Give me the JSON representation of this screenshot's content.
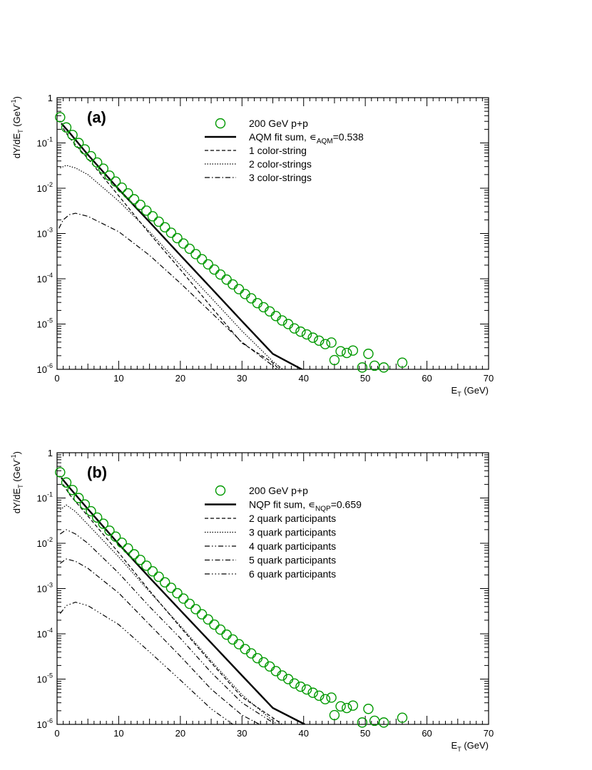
{
  "chart_data": [
    {
      "type": "line",
      "panel_label": "(a)",
      "xlabel": "E_T (GeV)",
      "ylabel": "dY/dE_T (GeV^-1)",
      "xlim": [
        0,
        70
      ],
      "ylim": [
        1e-06,
        1
      ],
      "yscale": "log",
      "x_ticks": [
        0,
        10,
        20,
        30,
        40,
        50,
        60,
        70
      ],
      "y_ticks": [
        1e-06,
        1e-05,
        0.0001,
        0.001,
        0.01,
        0.1,
        1
      ],
      "grid": false,
      "legend_position": "top-right",
      "legend": [
        {
          "label": "200 GeV p+p",
          "style": "marker",
          "color": "#009900"
        },
        {
          "label": "AQM fit sum, ε_AQM=0.538",
          "style": "solid-thick",
          "color": "#000000"
        },
        {
          "label": "1 color-string",
          "style": "dashed",
          "color": "#000000"
        },
        {
          "label": "2 color-strings",
          "style": "dotted",
          "color": "#000000"
        },
        {
          "label": "3 color-strings",
          "style": "dashdot",
          "color": "#000000"
        }
      ],
      "data_points": {
        "name": "200 GeV p+p",
        "color": "#009900",
        "x": [
          0.5,
          1.5,
          2.5,
          3.5,
          4.5,
          5.5,
          6.5,
          7.5,
          8.5,
          9.5,
          10.5,
          11.5,
          12.5,
          13.5,
          14.5,
          15.5,
          16.5,
          17.5,
          18.5,
          19.5,
          20.5,
          21.5,
          22.5,
          23.5,
          24.5,
          25.5,
          26.5,
          27.5,
          28.5,
          29.5,
          30.5,
          31.5,
          32.5,
          33.5,
          34.5,
          35.5,
          36.5,
          37.5,
          38.5,
          39.5,
          40.5,
          41.5,
          42.5,
          43.5,
          44.5,
          45,
          46,
          47,
          48,
          49.5,
          50.5,
          51.5,
          53,
          56
        ],
        "y": [
          0.37,
          0.22,
          0.15,
          0.1,
          0.072,
          0.051,
          0.037,
          0.027,
          0.019,
          0.014,
          0.0103,
          0.0077,
          0.0057,
          0.0043,
          0.0032,
          0.0024,
          0.00182,
          0.00137,
          0.00104,
          0.00079,
          0.0006,
          0.00046,
          0.00035,
          0.00027,
          0.000208,
          0.00016,
          0.000124,
          9.6e-05,
          7.5e-05,
          5.9e-05,
          4.6e-05,
          3.7e-05,
          2.9e-05,
          2.35e-05,
          1.9e-05,
          1.5e-05,
          1.2e-05,
          1e-05,
          8e-06,
          6.8e-06,
          5.9e-06,
          5e-06,
          4.3e-06,
          3.6e-06,
          3.9e-06,
          1.6e-06,
          2.5e-06,
          2.3e-06,
          2.6e-06,
          1.1e-06,
          2.2e-06,
          1.2e-06,
          1.1e-06,
          1.4e-06
        ]
      },
      "series": [
        {
          "name": "AQM fit sum",
          "style": "solid-thick",
          "x": [
            0.7,
            2,
            5,
            10,
            15,
            20,
            25,
            30,
            35,
            40
          ],
          "y": [
            0.27,
            0.17,
            0.055,
            0.0095,
            0.0018,
            0.00033,
            6.2e-05,
            1.15e-05,
            2.2e-06,
            9.5e-07
          ]
        },
        {
          "name": "1 color-string",
          "style": "dashed",
          "x": [
            1,
            2,
            5,
            10,
            15,
            20,
            25,
            30,
            35,
            36
          ],
          "y": [
            0.21,
            0.13,
            0.045,
            0.0068,
            0.001,
            0.00016,
            2.4e-05,
            3.8e-06,
            1.4e-06,
            1e-06
          ]
        },
        {
          "name": "2 color-strings",
          "style": "dotted",
          "x": [
            0.5,
            1.5,
            3,
            5,
            10,
            15,
            20,
            25,
            30,
            35,
            37.5
          ],
          "y": [
            0.028,
            0.032,
            0.028,
            0.02,
            0.0052,
            0.0011,
            0.0002,
            3.8e-05,
            7e-06,
            1.5e-06,
            8e-07
          ]
        },
        {
          "name": "3 color-strings",
          "style": "dashdot",
          "x": [
            0.3,
            1,
            2,
            3,
            5,
            10,
            15,
            20,
            25,
            30,
            35,
            36
          ],
          "y": [
            0.0013,
            0.002,
            0.0026,
            0.0028,
            0.0024,
            0.0011,
            0.00033,
            8e-05,
            1.8e-05,
            4e-06,
            1.2e-06,
            9e-07
          ]
        }
      ]
    },
    {
      "type": "line",
      "panel_label": "(b)",
      "xlabel": "E_T (GeV)",
      "ylabel": "dY/dE_T (GeV^-1)",
      "xlim": [
        0,
        70
      ],
      "ylim": [
        1e-06,
        1
      ],
      "yscale": "log",
      "x_ticks": [
        0,
        10,
        20,
        30,
        40,
        50,
        60,
        70
      ],
      "y_ticks": [
        1e-06,
        1e-05,
        0.0001,
        0.001,
        0.01,
        0.1,
        1
      ],
      "grid": false,
      "legend_position": "top-right",
      "legend": [
        {
          "label": "200 GeV p+p",
          "style": "marker",
          "color": "#009900"
        },
        {
          "label": "NQP fit sum, ε_NQP=0.659",
          "style": "solid-thick",
          "color": "#000000"
        },
        {
          "label": "2 quark participants",
          "style": "dashed",
          "color": "#000000"
        },
        {
          "label": "3 quark participants",
          "style": "dotted",
          "color": "#000000"
        },
        {
          "label": "4 quark participants",
          "style": "dashdotdot",
          "color": "#000000"
        },
        {
          "label": "5 quark participants",
          "style": "dashdot",
          "color": "#000000"
        },
        {
          "label": "6 quark participants",
          "style": "dashdotdotdot",
          "color": "#000000"
        }
      ],
      "data_points": {
        "name": "200 GeV p+p",
        "color": "#009900",
        "x": [
          0.5,
          1.5,
          2.5,
          3.5,
          4.5,
          5.5,
          6.5,
          7.5,
          8.5,
          9.5,
          10.5,
          11.5,
          12.5,
          13.5,
          14.5,
          15.5,
          16.5,
          17.5,
          18.5,
          19.5,
          20.5,
          21.5,
          22.5,
          23.5,
          24.5,
          25.5,
          26.5,
          27.5,
          28.5,
          29.5,
          30.5,
          31.5,
          32.5,
          33.5,
          34.5,
          35.5,
          36.5,
          37.5,
          38.5,
          39.5,
          40.5,
          41.5,
          42.5,
          43.5,
          44.5,
          45,
          46,
          47,
          48,
          49.5,
          50.5,
          51.5,
          53,
          56
        ],
        "y": [
          0.37,
          0.22,
          0.15,
          0.1,
          0.072,
          0.051,
          0.037,
          0.027,
          0.019,
          0.014,
          0.0103,
          0.0077,
          0.0057,
          0.0043,
          0.0032,
          0.0024,
          0.00182,
          0.00137,
          0.00104,
          0.00079,
          0.0006,
          0.00046,
          0.00035,
          0.00027,
          0.000208,
          0.00016,
          0.000124,
          9.6e-05,
          7.5e-05,
          5.9e-05,
          4.6e-05,
          3.7e-05,
          2.9e-05,
          2.35e-05,
          1.9e-05,
          1.5e-05,
          1.2e-05,
          1e-05,
          8e-06,
          6.8e-06,
          5.9e-06,
          5e-06,
          4.3e-06,
          3.6e-06,
          3.9e-06,
          1.6e-06,
          2.5e-06,
          2.3e-06,
          2.6e-06,
          1.1e-06,
          2.2e-06,
          1.2e-06,
          1.1e-06,
          1.4e-06
        ]
      },
      "series": [
        {
          "name": "NQP fit sum",
          "style": "solid-thick",
          "x": [
            0.7,
            2,
            5,
            10,
            15,
            20,
            25,
            30,
            35,
            40.2
          ],
          "y": [
            0.28,
            0.17,
            0.057,
            0.0096,
            0.00175,
            0.00033,
            6.3e-05,
            1.2e-05,
            2.3e-06,
            1e-06
          ]
        },
        {
          "name": "2 quark participants",
          "style": "dashed",
          "x": [
            1,
            2,
            5,
            10,
            15,
            20,
            25,
            30,
            35,
            36.5
          ],
          "y": [
            0.2,
            0.12,
            0.04,
            0.0062,
            0.0009,
            0.00014,
            2.3e-05,
            4e-06,
            1.4e-06,
            1e-06
          ]
        },
        {
          "name": "3 quark participants",
          "style": "dotted",
          "x": [
            0.5,
            1.5,
            3,
            5,
            10,
            15,
            20,
            25,
            30,
            35,
            36
          ],
          "y": [
            0.055,
            0.07,
            0.05,
            0.026,
            0.005,
            0.00085,
            0.00015,
            2.5e-05,
            4.5e-06,
            1.2e-06,
            9e-07
          ]
        },
        {
          "name": "4 quark participants",
          "style": "dashdotdot",
          "x": [
            0.5,
            1.5,
            3,
            5,
            10,
            15,
            20,
            25,
            30,
            35,
            35.5
          ],
          "y": [
            0.016,
            0.02,
            0.016,
            0.01,
            0.0022,
            0.0004,
            8e-05,
            1.4e-05,
            3e-06,
            1.1e-06,
            9e-07
          ]
        },
        {
          "name": "5 quark participants",
          "style": "dashdot",
          "x": [
            0.5,
            1.5,
            3,
            5,
            10,
            15,
            20,
            25,
            30,
            33.5
          ],
          "y": [
            0.0036,
            0.0045,
            0.004,
            0.0028,
            0.0008,
            0.00016,
            3.2e-05,
            6e-06,
            1.6e-06,
            9e-07
          ]
        },
        {
          "name": "6 quark participants",
          "style": "dashdotdotdot",
          "x": [
            0.5,
            1.5,
            3,
            5,
            10,
            15,
            20,
            25,
            29
          ],
          "y": [
            0.00028,
            0.00042,
            0.0005,
            0.00042,
            0.00016,
            4e-05,
            9.5e-06,
            2.2e-06,
            9e-07
          ]
        }
      ]
    }
  ]
}
